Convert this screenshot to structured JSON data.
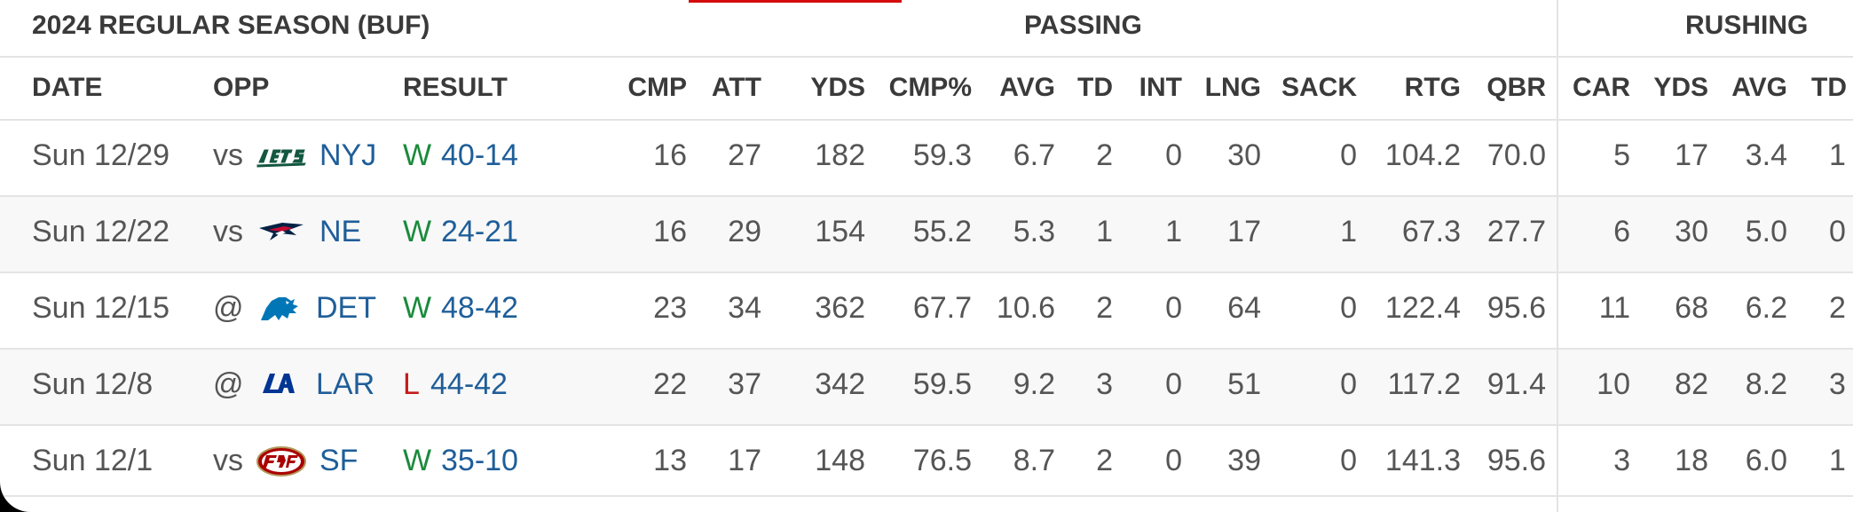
{
  "header": {
    "season_title": "2024 REGULAR SEASON (BUF)",
    "passing_label": "PASSING",
    "rushing_label": "RUSHING"
  },
  "columns": [
    "DATE",
    "OPP",
    "RESULT",
    "CMP",
    "ATT",
    "YDS",
    "CMP%",
    "AVG",
    "TD",
    "INT",
    "LNG",
    "SACK",
    "RTG",
    "QBR",
    "CAR",
    "YDS",
    "AVG",
    "TD"
  ],
  "games": [
    {
      "date": "Sun 12/29",
      "loc": "vs",
      "logo": "jets-logo-icon",
      "team": "NYJ",
      "res": "W",
      "score": "40-14",
      "cmp": "16",
      "att": "27",
      "yds": "182",
      "pct": "59.3",
      "avg": "6.7",
      "td": "2",
      "int": "0",
      "lng": "30",
      "sack": "0",
      "rtg": "104.2",
      "qbr": "70.0",
      "car": "5",
      "ryds": "17",
      "ravg": "3.4",
      "rtd": "1"
    },
    {
      "date": "Sun 12/22",
      "loc": "vs",
      "logo": "patriots-logo-icon",
      "team": "NE",
      "res": "W",
      "score": "24-21",
      "cmp": "16",
      "att": "29",
      "yds": "154",
      "pct": "55.2",
      "avg": "5.3",
      "td": "1",
      "int": "1",
      "lng": "17",
      "sack": "1",
      "rtg": "67.3",
      "qbr": "27.7",
      "car": "6",
      "ryds": "30",
      "ravg": "5.0",
      "rtd": "0"
    },
    {
      "date": "Sun 12/15",
      "loc": "@",
      "logo": "lions-logo-icon",
      "team": "DET",
      "res": "W",
      "score": "48-42",
      "cmp": "23",
      "att": "34",
      "yds": "362",
      "pct": "67.7",
      "avg": "10.6",
      "td": "2",
      "int": "0",
      "lng": "64",
      "sack": "0",
      "rtg": "122.4",
      "qbr": "95.6",
      "car": "11",
      "ryds": "68",
      "ravg": "6.2",
      "rtd": "2"
    },
    {
      "date": "Sun 12/8",
      "loc": "@",
      "logo": "rams-logo-icon",
      "team": "LAR",
      "res": "L",
      "score": "44-42",
      "cmp": "22",
      "att": "37",
      "yds": "342",
      "pct": "59.5",
      "avg": "9.2",
      "td": "3",
      "int": "0",
      "lng": "51",
      "sack": "0",
      "rtg": "117.2",
      "qbr": "91.4",
      "car": "10",
      "ryds": "82",
      "ravg": "8.2",
      "rtd": "3"
    },
    {
      "date": "Sun 12/1",
      "loc": "vs",
      "logo": "49ers-logo-icon",
      "team": "SF",
      "res": "W",
      "score": "35-10",
      "cmp": "13",
      "att": "17",
      "yds": "148",
      "pct": "76.5",
      "avg": "8.7",
      "td": "2",
      "int": "0",
      "lng": "39",
      "sack": "0",
      "rtg": "141.3",
      "qbr": "95.6",
      "car": "3",
      "ryds": "18",
      "ravg": "6.0",
      "rtd": "1"
    }
  ]
}
